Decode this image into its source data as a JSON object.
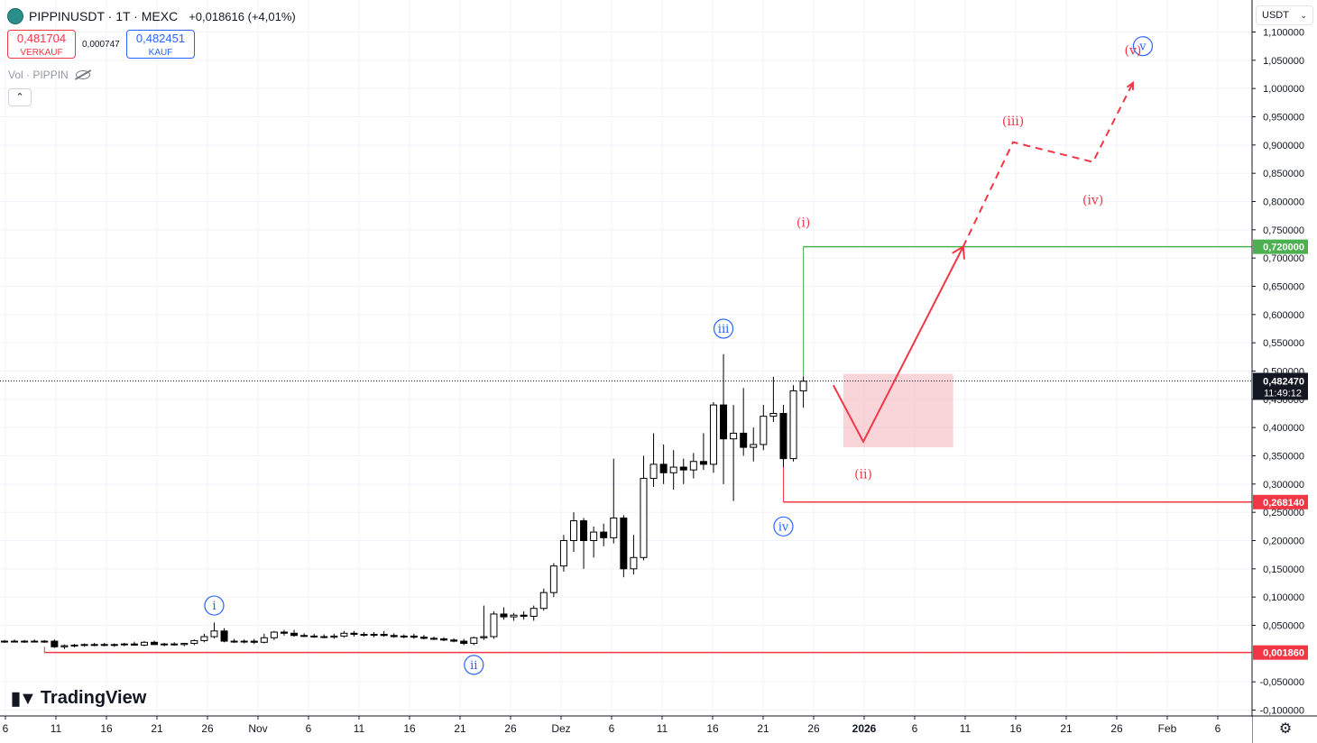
{
  "header": {
    "title": "PIPPINUSDT · 1T · MEXC",
    "change": "+0,018616 (+4,01%)",
    "sell_price": "0,481704",
    "sell_label": "VERKAUF",
    "spread": "0,000747",
    "buy_price": "0,482451",
    "buy_label": "KAUF",
    "volume_label": "Vol · PIPPIN",
    "collapse_icon": "chevron-up-icon"
  },
  "currency_selector": {
    "label": "USDT",
    "icon": "chevron-down-icon"
  },
  "branding": {
    "text": "TradingView"
  },
  "settings_icon": "gear-icon",
  "colors": {
    "candle": "#000000",
    "accent_red": "#f23645",
    "accent_green": "#4caf50",
    "wave_blue": "#2962ff",
    "zone_fill": "#f7c6cc"
  },
  "chart_data": {
    "type": "candlestick",
    "ylim": [
      -0.1,
      1.1
    ],
    "y_ticks": [
      "-0,100000",
      "-0,050000",
      "0,050000",
      "0,100000",
      "0,150000",
      "0,200000",
      "0,250000",
      "0,300000",
      "0,350000",
      "0,400000",
      "0,450000",
      "0,500000",
      "0,550000",
      "0,600000",
      "0,650000",
      "0,700000",
      "0,750000",
      "0,800000",
      "0,850000",
      "0,900000",
      "0,950000",
      "1,000000",
      "1,050000",
      "1,100000"
    ],
    "x_ticks": [
      "6",
      "11",
      "16",
      "21",
      "26",
      "Nov",
      "6",
      "11",
      "16",
      "21",
      "26",
      "Dez",
      "6",
      "11",
      "16",
      "21",
      "26",
      "2026",
      "6",
      "11",
      "16",
      "21",
      "26",
      "Feb",
      "6"
    ],
    "candles": [
      {
        "o": 0.021,
        "h": 0.024,
        "l": 0.019,
        "c": 0.022
      },
      {
        "o": 0.022,
        "h": 0.025,
        "l": 0.02,
        "c": 0.021
      },
      {
        "o": 0.021,
        "h": 0.024,
        "l": 0.019,
        "c": 0.022
      },
      {
        "o": 0.022,
        "h": 0.025,
        "l": 0.02,
        "c": 0.021
      },
      {
        "o": 0.021,
        "h": 0.024,
        "l": 0.019,
        "c": 0.022
      },
      {
        "o": 0.022,
        "h": 0.025,
        "l": 0.01,
        "c": 0.012
      },
      {
        "o": 0.012,
        "h": 0.016,
        "l": 0.008,
        "c": 0.014
      },
      {
        "o": 0.014,
        "h": 0.017,
        "l": 0.011,
        "c": 0.015
      },
      {
        "o": 0.015,
        "h": 0.018,
        "l": 0.012,
        "c": 0.016
      },
      {
        "o": 0.016,
        "h": 0.019,
        "l": 0.013,
        "c": 0.016
      },
      {
        "o": 0.016,
        "h": 0.019,
        "l": 0.013,
        "c": 0.015
      },
      {
        "o": 0.015,
        "h": 0.018,
        "l": 0.012,
        "c": 0.016
      },
      {
        "o": 0.016,
        "h": 0.019,
        "l": 0.013,
        "c": 0.017
      },
      {
        "o": 0.017,
        "h": 0.021,
        "l": 0.014,
        "c": 0.015
      },
      {
        "o": 0.015,
        "h": 0.022,
        "l": 0.013,
        "c": 0.02
      },
      {
        "o": 0.02,
        "h": 0.023,
        "l": 0.015,
        "c": 0.016
      },
      {
        "o": 0.016,
        "h": 0.019,
        "l": 0.013,
        "c": 0.017
      },
      {
        "o": 0.017,
        "h": 0.02,
        "l": 0.014,
        "c": 0.016
      },
      {
        "o": 0.016,
        "h": 0.019,
        "l": 0.013,
        "c": 0.018
      },
      {
        "o": 0.018,
        "h": 0.025,
        "l": 0.015,
        "c": 0.023
      },
      {
        "o": 0.023,
        "h": 0.035,
        "l": 0.02,
        "c": 0.03
      },
      {
        "o": 0.03,
        "h": 0.055,
        "l": 0.027,
        "c": 0.04
      },
      {
        "o": 0.04,
        "h": 0.045,
        "l": 0.02,
        "c": 0.022
      },
      {
        "o": 0.022,
        "h": 0.026,
        "l": 0.019,
        "c": 0.021
      },
      {
        "o": 0.021,
        "h": 0.025,
        "l": 0.018,
        "c": 0.022
      },
      {
        "o": 0.022,
        "h": 0.026,
        "l": 0.017,
        "c": 0.02
      },
      {
        "o": 0.02,
        "h": 0.035,
        "l": 0.018,
        "c": 0.028
      },
      {
        "o": 0.028,
        "h": 0.04,
        "l": 0.024,
        "c": 0.038
      },
      {
        "o": 0.038,
        "h": 0.042,
        "l": 0.032,
        "c": 0.036
      },
      {
        "o": 0.036,
        "h": 0.042,
        "l": 0.03,
        "c": 0.032
      },
      {
        "o": 0.032,
        "h": 0.036,
        "l": 0.029,
        "c": 0.031
      },
      {
        "o": 0.031,
        "h": 0.035,
        "l": 0.028,
        "c": 0.03
      },
      {
        "o": 0.03,
        "h": 0.034,
        "l": 0.027,
        "c": 0.029
      },
      {
        "o": 0.029,
        "h": 0.035,
        "l": 0.026,
        "c": 0.031
      },
      {
        "o": 0.031,
        "h": 0.04,
        "l": 0.028,
        "c": 0.036
      },
      {
        "o": 0.036,
        "h": 0.04,
        "l": 0.03,
        "c": 0.034
      },
      {
        "o": 0.034,
        "h": 0.038,
        "l": 0.03,
        "c": 0.033
      },
      {
        "o": 0.033,
        "h": 0.038,
        "l": 0.029,
        "c": 0.034
      },
      {
        "o": 0.034,
        "h": 0.04,
        "l": 0.03,
        "c": 0.032
      },
      {
        "o": 0.032,
        "h": 0.036,
        "l": 0.028,
        "c": 0.03
      },
      {
        "o": 0.03,
        "h": 0.034,
        "l": 0.027,
        "c": 0.031
      },
      {
        "o": 0.031,
        "h": 0.035,
        "l": 0.026,
        "c": 0.029
      },
      {
        "o": 0.029,
        "h": 0.033,
        "l": 0.025,
        "c": 0.027
      },
      {
        "o": 0.027,
        "h": 0.03,
        "l": 0.024,
        "c": 0.026
      },
      {
        "o": 0.026,
        "h": 0.029,
        "l": 0.022,
        "c": 0.024
      },
      {
        "o": 0.024,
        "h": 0.027,
        "l": 0.02,
        "c": 0.022
      },
      {
        "o": 0.022,
        "h": 0.026,
        "l": 0.015,
        "c": 0.018
      },
      {
        "o": 0.018,
        "h": 0.03,
        "l": 0.015,
        "c": 0.028
      },
      {
        "o": 0.028,
        "h": 0.085,
        "l": 0.024,
        "c": 0.03
      },
      {
        "o": 0.03,
        "h": 0.075,
        "l": 0.026,
        "c": 0.07
      },
      {
        "o": 0.07,
        "h": 0.082,
        "l": 0.06,
        "c": 0.065
      },
      {
        "o": 0.065,
        "h": 0.072,
        "l": 0.058,
        "c": 0.068
      },
      {
        "o": 0.068,
        "h": 0.075,
        "l": 0.06,
        "c": 0.066
      },
      {
        "o": 0.066,
        "h": 0.085,
        "l": 0.058,
        "c": 0.08
      },
      {
        "o": 0.08,
        "h": 0.115,
        "l": 0.076,
        "c": 0.108
      },
      {
        "o": 0.108,
        "h": 0.16,
        "l": 0.1,
        "c": 0.155
      },
      {
        "o": 0.155,
        "h": 0.21,
        "l": 0.145,
        "c": 0.2
      },
      {
        "o": 0.2,
        "h": 0.25,
        "l": 0.18,
        "c": 0.235
      },
      {
        "o": 0.235,
        "h": 0.24,
        "l": 0.15,
        "c": 0.2
      },
      {
        "o": 0.2,
        "h": 0.225,
        "l": 0.17,
        "c": 0.215
      },
      {
        "o": 0.215,
        "h": 0.23,
        "l": 0.19,
        "c": 0.205
      },
      {
        "o": 0.205,
        "h": 0.345,
        "l": 0.195,
        "c": 0.24
      },
      {
        "o": 0.24,
        "h": 0.245,
        "l": 0.135,
        "c": 0.15
      },
      {
        "o": 0.15,
        "h": 0.21,
        "l": 0.14,
        "c": 0.17
      },
      {
        "o": 0.17,
        "h": 0.35,
        "l": 0.165,
        "c": 0.31
      },
      {
        "o": 0.31,
        "h": 0.39,
        "l": 0.295,
        "c": 0.335
      },
      {
        "o": 0.335,
        "h": 0.37,
        "l": 0.3,
        "c": 0.32
      },
      {
        "o": 0.32,
        "h": 0.36,
        "l": 0.29,
        "c": 0.33
      },
      {
        "o": 0.33,
        "h": 0.345,
        "l": 0.3,
        "c": 0.325
      },
      {
        "o": 0.325,
        "h": 0.355,
        "l": 0.31,
        "c": 0.34
      },
      {
        "o": 0.34,
        "h": 0.39,
        "l": 0.325,
        "c": 0.335
      },
      {
        "o": 0.335,
        "h": 0.445,
        "l": 0.32,
        "c": 0.44
      },
      {
        "o": 0.44,
        "h": 0.53,
        "l": 0.3,
        "c": 0.38
      },
      {
        "o": 0.38,
        "h": 0.44,
        "l": 0.27,
        "c": 0.39
      },
      {
        "o": 0.39,
        "h": 0.47,
        "l": 0.35,
        "c": 0.365
      },
      {
        "o": 0.365,
        "h": 0.4,
        "l": 0.34,
        "c": 0.37
      },
      {
        "o": 0.37,
        "h": 0.44,
        "l": 0.36,
        "c": 0.42
      },
      {
        "o": 0.42,
        "h": 0.49,
        "l": 0.41,
        "c": 0.425
      },
      {
        "o": 0.425,
        "h": 0.44,
        "l": 0.33,
        "c": 0.345
      },
      {
        "o": 0.345,
        "h": 0.475,
        "l": 0.34,
        "c": 0.465
      },
      {
        "o": 0.465,
        "h": 0.49,
        "l": 0.435,
        "c": 0.482
      }
    ],
    "horizontal_levels": [
      {
        "value": 0.72,
        "label": "0,720000",
        "color": "#4caf50"
      },
      {
        "value": 0.26814,
        "label": "0,268140",
        "color": "#f23645"
      },
      {
        "value": 0.00186,
        "label": "0,001860",
        "color": "#f23645"
      }
    ],
    "current_price": {
      "value": 0.48247,
      "label": "0,482470",
      "countdown": "11:49:12"
    },
    "wave_labels_blue": [
      {
        "text": "i",
        "bar": 21,
        "value": 0.085
      },
      {
        "text": "ii",
        "bar": 47,
        "value": -0.02
      },
      {
        "text": "iii",
        "bar": 72,
        "value": 0.575
      },
      {
        "text": "iv",
        "bar": 78,
        "value": 0.225
      },
      {
        "text": "v",
        "bar": 114,
        "value": 1.075
      }
    ],
    "wave_labels_red": [
      {
        "text": "(i)",
        "bar": 80,
        "value": 0.755
      },
      {
        "text": "(ii)",
        "bar": 86,
        "value": 0.31
      },
      {
        "text": "(iii)",
        "bar": 101,
        "value": 0.935
      },
      {
        "text": "(iv)",
        "bar": 109,
        "value": 0.795
      },
      {
        "text": "(v)",
        "bar": 113,
        "value": 1.06
      }
    ],
    "projection_solid": [
      {
        "bar": 83,
        "value": 0.475
      },
      {
        "bar": 86,
        "value": 0.375
      },
      {
        "bar": 96,
        "value": 0.72
      }
    ],
    "projection_dashed": [
      {
        "bar": 96,
        "value": 0.72
      },
      {
        "bar": 101,
        "value": 0.905
      },
      {
        "bar": 109,
        "value": 0.87
      },
      {
        "bar": 113,
        "value": 1.01
      }
    ],
    "zone": {
      "bar_from": 84,
      "bar_to": 95,
      "value_from": 0.365,
      "value_to": 0.495
    }
  }
}
